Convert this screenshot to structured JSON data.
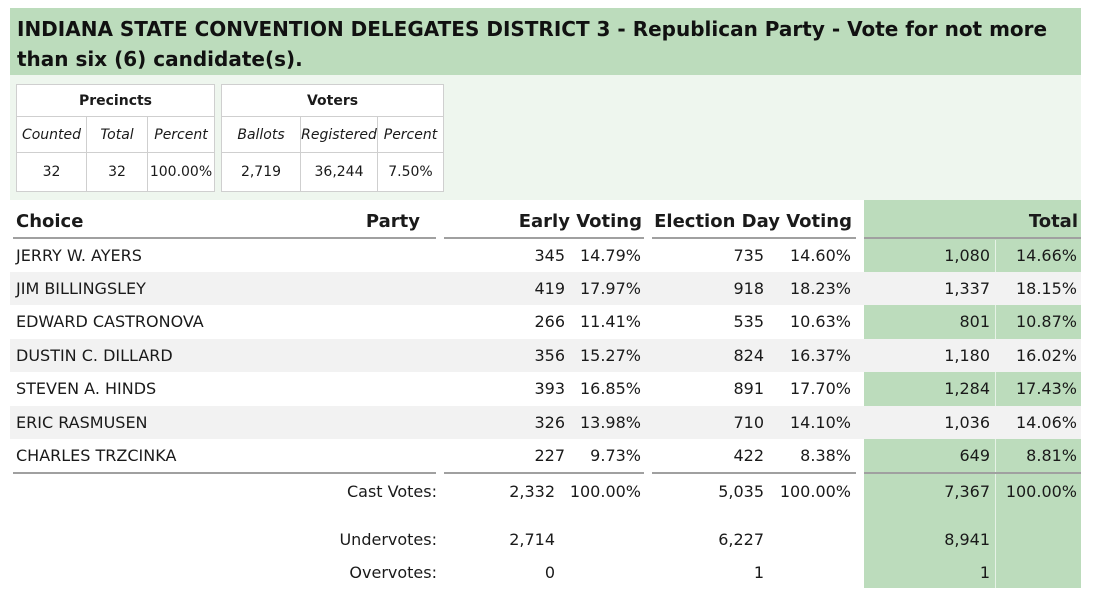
{
  "title": "INDIANA STATE CONVENTION DELEGATES DISTRICT 3 - Republican Party - Vote for not more than six (6) candidate(s).",
  "precincts": {
    "header": "Precincts",
    "labels": [
      "Counted",
      "Total",
      "Percent"
    ],
    "values": [
      "32",
      "32",
      "100.00%"
    ]
  },
  "voters": {
    "header": "Voters",
    "labels": [
      "Ballots",
      "Registered",
      "Percent"
    ],
    "values": [
      "2,719",
      "36,244",
      "7.50%"
    ]
  },
  "columns": {
    "choice": "Choice",
    "party": "Party",
    "early": "Early Voting",
    "election_day": "Election Day Voting",
    "total": "Total"
  },
  "rows": [
    {
      "name": "JERRY W. AYERS",
      "early": "345",
      "early_pct": "14.79%",
      "eday": "735",
      "eday_pct": "14.60%",
      "total": "1,080",
      "total_pct": "14.66%"
    },
    {
      "name": "JIM BILLINGSLEY",
      "early": "419",
      "early_pct": "17.97%",
      "eday": "918",
      "eday_pct": "18.23%",
      "total": "1,337",
      "total_pct": "18.15%"
    },
    {
      "name": "EDWARD CASTRONOVA",
      "early": "266",
      "early_pct": "11.41%",
      "eday": "535",
      "eday_pct": "10.63%",
      "total": "801",
      "total_pct": "10.87%"
    },
    {
      "name": "DUSTIN C. DILLARD",
      "early": "356",
      "early_pct": "15.27%",
      "eday": "824",
      "eday_pct": "16.37%",
      "total": "1,180",
      "total_pct": "16.02%"
    },
    {
      "name": "STEVEN A. HINDS",
      "early": "393",
      "early_pct": "16.85%",
      "eday": "891",
      "eday_pct": "17.70%",
      "total": "1,284",
      "total_pct": "17.43%"
    },
    {
      "name": "ERIC RASMUSEN",
      "early": "326",
      "early_pct": "13.98%",
      "eday": "710",
      "eday_pct": "14.10%",
      "total": "1,036",
      "total_pct": "14.06%"
    },
    {
      "name": "CHARLES TRZCINKA",
      "early": "227",
      "early_pct": "9.73%",
      "eday": "422",
      "eday_pct": "8.38%",
      "total": "649",
      "total_pct": "8.81%"
    }
  ],
  "footer": {
    "cast": {
      "label": "Cast Votes:",
      "early": "2,332",
      "early_pct": "100.00%",
      "eday": "5,035",
      "eday_pct": "100.00%",
      "total": "7,367",
      "total_pct": "100.00%"
    },
    "under": {
      "label": "Undervotes:",
      "early": "2,714",
      "eday": "6,227",
      "total": "8,941"
    },
    "over": {
      "label": "Overvotes:",
      "early": "0",
      "eday": "1",
      "total": "1"
    }
  },
  "colors": {
    "accent_green": "#bcdcbc",
    "summary_bg": "#eef6ee",
    "alt_row": "#f2f2f2"
  }
}
